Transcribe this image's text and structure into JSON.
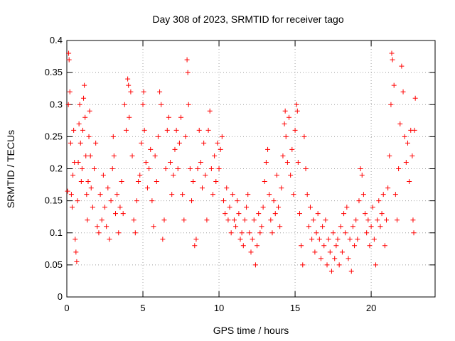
{
  "chart_data": {
    "type": "scatter",
    "title": "Day 308 of 2023, SRMTID for receiver tago",
    "xlabel": "GPS time / hours",
    "ylabel": "SRMTID / TECUs",
    "xlim": [
      0,
      24.2
    ],
    "ylim": [
      0,
      0.4
    ],
    "xticks": [
      0,
      5,
      10,
      15,
      20
    ],
    "yticks": [
      0,
      0.05,
      0.1,
      0.15,
      0.2,
      0.25,
      0.3,
      0.35,
      0.4
    ],
    "xtick_labels": [
      "0",
      "5",
      "10",
      "15",
      "20"
    ],
    "ytick_labels": [
      "0",
      "0.05",
      "0.1",
      "0.15",
      "0.2",
      "0.25",
      "0.3",
      "0.35",
      "0.4"
    ],
    "grid": true,
    "marker": "+",
    "series": [
      {
        "name": "SRMTID",
        "color": "#ff0000",
        "points": [
          [
            0.05,
            0.165
          ],
          [
            0.1,
            0.3
          ],
          [
            0.12,
            0.38
          ],
          [
            0.15,
            0.37
          ],
          [
            0.2,
            0.32
          ],
          [
            0.25,
            0.24
          ],
          [
            0.3,
            0.16
          ],
          [
            0.35,
            0.14
          ],
          [
            0.4,
            0.19
          ],
          [
            0.45,
            0.26
          ],
          [
            0.5,
            0.21
          ],
          [
            0.55,
            0.09
          ],
          [
            0.6,
            0.07
          ],
          [
            0.65,
            0.055
          ],
          [
            0.7,
            0.15
          ],
          [
            0.75,
            0.21
          ],
          [
            0.8,
            0.27
          ],
          [
            0.85,
            0.3
          ],
          [
            0.9,
            0.24
          ],
          [
            0.95,
            0.18
          ],
          [
            1.0,
            0.2
          ],
          [
            1.05,
            0.26
          ],
          [
            1.1,
            0.31
          ],
          [
            1.15,
            0.33
          ],
          [
            1.2,
            0.28
          ],
          [
            1.25,
            0.22
          ],
          [
            1.3,
            0.16
          ],
          [
            1.35,
            0.12
          ],
          [
            1.4,
            0.18
          ],
          [
            1.45,
            0.25
          ],
          [
            1.5,
            0.29
          ],
          [
            1.55,
            0.22
          ],
          [
            1.6,
            0.17
          ],
          [
            1.7,
            0.14
          ],
          [
            1.8,
            0.2
          ],
          [
            1.9,
            0.24
          ],
          [
            2.0,
            0.11
          ],
          [
            2.1,
            0.1
          ],
          [
            2.2,
            0.16
          ],
          [
            2.3,
            0.12
          ],
          [
            2.4,
            0.19
          ],
          [
            2.5,
            0.14
          ],
          [
            2.6,
            0.11
          ],
          [
            2.7,
            0.17
          ],
          [
            2.8,
            0.09
          ],
          [
            2.9,
            0.15
          ],
          [
            3.0,
            0.2
          ],
          [
            3.05,
            0.25
          ],
          [
            3.1,
            0.22
          ],
          [
            3.2,
            0.13
          ],
          [
            3.3,
            0.16
          ],
          [
            3.4,
            0.1
          ],
          [
            3.5,
            0.14
          ],
          [
            3.6,
            0.18
          ],
          [
            3.7,
            0.13
          ],
          [
            3.8,
            0.3
          ],
          [
            3.9,
            0.26
          ],
          [
            4.0,
            0.34
          ],
          [
            4.05,
            0.33
          ],
          [
            4.1,
            0.28
          ],
          [
            4.2,
            0.32
          ],
          [
            4.3,
            0.22
          ],
          [
            4.4,
            0.12
          ],
          [
            4.5,
            0.1
          ],
          [
            4.6,
            0.15
          ],
          [
            4.7,
            0.18
          ],
          [
            4.8,
            0.19
          ],
          [
            4.9,
            0.24
          ],
          [
            5.0,
            0.3
          ],
          [
            5.05,
            0.32
          ],
          [
            5.1,
            0.26
          ],
          [
            5.2,
            0.21
          ],
          [
            5.3,
            0.17
          ],
          [
            5.4,
            0.2
          ],
          [
            5.5,
            0.23
          ],
          [
            5.6,
            0.15
          ],
          [
            5.7,
            0.11
          ],
          [
            5.8,
            0.22
          ],
          [
            5.9,
            0.18
          ],
          [
            6.0,
            0.25
          ],
          [
            6.1,
            0.32
          ],
          [
            6.2,
            0.3
          ],
          [
            6.3,
            0.09
          ],
          [
            6.4,
            0.12
          ],
          [
            6.5,
            0.2
          ],
          [
            6.6,
            0.26
          ],
          [
            6.7,
            0.28
          ],
          [
            6.8,
            0.21
          ],
          [
            6.9,
            0.16
          ],
          [
            7.0,
            0.19
          ],
          [
            7.1,
            0.23
          ],
          [
            7.2,
            0.26
          ],
          [
            7.3,
            0.2
          ],
          [
            7.4,
            0.24
          ],
          [
            7.5,
            0.28
          ],
          [
            7.6,
            0.16
          ],
          [
            7.7,
            0.12
          ],
          [
            7.8,
            0.25
          ],
          [
            7.9,
            0.37
          ],
          [
            7.95,
            0.35
          ],
          [
            8.0,
            0.3
          ],
          [
            8.1,
            0.2
          ],
          [
            8.2,
            0.15
          ],
          [
            8.3,
            0.18
          ],
          [
            8.4,
            0.08
          ],
          [
            8.5,
            0.09
          ],
          [
            8.6,
            0.2
          ],
          [
            8.7,
            0.26
          ],
          [
            8.8,
            0.21
          ],
          [
            8.9,
            0.17
          ],
          [
            9.0,
            0.24
          ],
          [
            9.1,
            0.19
          ],
          [
            9.2,
            0.12
          ],
          [
            9.3,
            0.26
          ],
          [
            9.4,
            0.29
          ],
          [
            9.5,
            0.2
          ],
          [
            9.6,
            0.16
          ],
          [
            9.7,
            0.22
          ],
          [
            9.8,
            0.18
          ],
          [
            9.9,
            0.24
          ],
          [
            10.0,
            0.2
          ],
          [
            10.1,
            0.23
          ],
          [
            10.2,
            0.25
          ],
          [
            10.3,
            0.15
          ],
          [
            10.4,
            0.13
          ],
          [
            10.5,
            0.17
          ],
          [
            10.6,
            0.12
          ],
          [
            10.7,
            0.14
          ],
          [
            10.8,
            0.1
          ],
          [
            10.9,
            0.16
          ],
          [
            11.0,
            0.12
          ],
          [
            11.1,
            0.11
          ],
          [
            11.2,
            0.15
          ],
          [
            11.3,
            0.13
          ],
          [
            11.4,
            0.09
          ],
          [
            11.5,
            0.1
          ],
          [
            11.6,
            0.08
          ],
          [
            11.7,
            0.12
          ],
          [
            11.8,
            0.14
          ],
          [
            11.9,
            0.16
          ],
          [
            12.0,
            0.1
          ],
          [
            12.1,
            0.07
          ],
          [
            12.2,
            0.09
          ],
          [
            12.3,
            0.12
          ],
          [
            12.4,
            0.05
          ],
          [
            12.5,
            0.08
          ],
          [
            12.6,
            0.13
          ],
          [
            12.7,
            0.1
          ],
          [
            12.8,
            0.11
          ],
          [
            12.9,
            0.14
          ],
          [
            13.0,
            0.18
          ],
          [
            13.1,
            0.21
          ],
          [
            13.2,
            0.23
          ],
          [
            13.3,
            0.16
          ],
          [
            13.4,
            0.12
          ],
          [
            13.5,
            0.1
          ],
          [
            13.6,
            0.15
          ],
          [
            13.7,
            0.13
          ],
          [
            13.8,
            0.19
          ],
          [
            13.9,
            0.14
          ],
          [
            14.0,
            0.11
          ],
          [
            14.1,
            0.17
          ],
          [
            14.2,
            0.22
          ],
          [
            14.3,
            0.27
          ],
          [
            14.35,
            0.29
          ],
          [
            14.4,
            0.25
          ],
          [
            14.5,
            0.21
          ],
          [
            14.6,
            0.28
          ],
          [
            14.7,
            0.19
          ],
          [
            14.8,
            0.23
          ],
          [
            14.9,
            0.16
          ],
          [
            15.0,
            0.26
          ],
          [
            15.1,
            0.3
          ],
          [
            15.15,
            0.29
          ],
          [
            15.2,
            0.21
          ],
          [
            15.3,
            0.13
          ],
          [
            15.4,
            0.08
          ],
          [
            15.5,
            0.05
          ],
          [
            15.6,
            0.25
          ],
          [
            15.7,
            0.2
          ],
          [
            15.8,
            0.16
          ],
          [
            15.9,
            0.11
          ],
          [
            16.0,
            0.14
          ],
          [
            16.1,
            0.09
          ],
          [
            16.2,
            0.12
          ],
          [
            16.3,
            0.07
          ],
          [
            16.4,
            0.1
          ],
          [
            16.5,
            0.13
          ],
          [
            16.6,
            0.09
          ],
          [
            16.7,
            0.06
          ],
          [
            16.8,
            0.11
          ],
          [
            16.9,
            0.08
          ],
          [
            17.0,
            0.12
          ],
          [
            17.1,
            0.05
          ],
          [
            17.2,
            0.09
          ],
          [
            17.3,
            0.07
          ],
          [
            17.4,
            0.04
          ],
          [
            17.5,
            0.1
          ],
          [
            17.6,
            0.06
          ],
          [
            17.7,
            0.08
          ],
          [
            17.8,
            0.09
          ],
          [
            17.9,
            0.05
          ],
          [
            18.0,
            0.11
          ],
          [
            18.1,
            0.07
          ],
          [
            18.2,
            0.13
          ],
          [
            18.3,
            0.1
          ],
          [
            18.4,
            0.14
          ],
          [
            18.5,
            0.06
          ],
          [
            18.6,
            0.09
          ],
          [
            18.7,
            0.04
          ],
          [
            18.8,
            0.11
          ],
          [
            18.9,
            0.08
          ],
          [
            19.0,
            0.12
          ],
          [
            19.1,
            0.09
          ],
          [
            19.2,
            0.15
          ],
          [
            19.3,
            0.2
          ],
          [
            19.4,
            0.19
          ],
          [
            19.5,
            0.16
          ],
          [
            19.6,
            0.13
          ],
          [
            19.7,
            0.1
          ],
          [
            19.8,
            0.12
          ],
          [
            19.9,
            0.08
          ],
          [
            20.0,
            0.11
          ],
          [
            20.1,
            0.14
          ],
          [
            20.2,
            0.09
          ],
          [
            20.3,
            0.05
          ],
          [
            20.4,
            0.12
          ],
          [
            20.5,
            0.15
          ],
          [
            20.6,
            0.11
          ],
          [
            20.7,
            0.13
          ],
          [
            20.8,
            0.16
          ],
          [
            20.9,
            0.08
          ],
          [
            21.0,
            0.12
          ],
          [
            21.1,
            0.17
          ],
          [
            21.2,
            0.22
          ],
          [
            21.3,
            0.3
          ],
          [
            21.35,
            0.38
          ],
          [
            21.4,
            0.37
          ],
          [
            21.5,
            0.33
          ],
          [
            21.6,
            0.16
          ],
          [
            21.7,
            0.12
          ],
          [
            21.8,
            0.2
          ],
          [
            21.9,
            0.27
          ],
          [
            22.0,
            0.36
          ],
          [
            22.1,
            0.32
          ],
          [
            22.2,
            0.25
          ],
          [
            22.3,
            0.21
          ],
          [
            22.4,
            0.24
          ],
          [
            22.5,
            0.18
          ],
          [
            22.6,
            0.26
          ],
          [
            22.7,
            0.22
          ],
          [
            22.75,
            0.12
          ],
          [
            22.8,
            0.1
          ],
          [
            22.85,
            0.26
          ],
          [
            22.9,
            0.31
          ]
        ]
      }
    ]
  }
}
